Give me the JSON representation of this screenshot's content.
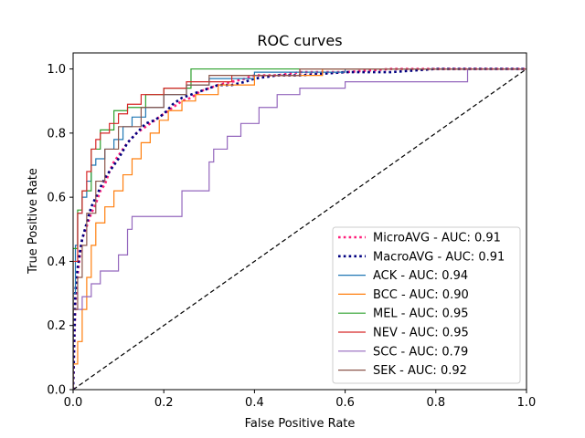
{
  "chart_data": {
    "type": "line",
    "title": "ROC curves",
    "xlabel": "False Positive Rate",
    "ylabel": "True Positive Rate",
    "xlim": [
      0,
      1
    ],
    "ylim": [
      0,
      1.05
    ],
    "xticks": [
      0.0,
      0.2,
      0.4,
      0.6,
      0.8,
      1.0
    ],
    "yticks": [
      0.0,
      0.2,
      0.4,
      0.6,
      0.8,
      1.0
    ],
    "tick_labels_x": [
      "0.0",
      "0.2",
      "0.4",
      "0.6",
      "0.8",
      "1.0"
    ],
    "tick_labels_y": [
      "0.0",
      "0.2",
      "0.4",
      "0.6",
      "0.8",
      "1.0"
    ],
    "legend_position": "lower-right",
    "chance_line": {
      "x": [
        0,
        1
      ],
      "y": [
        0,
        1
      ],
      "color": "#000000",
      "style": "dashed"
    },
    "series": [
      {
        "name": "MicroAVG - AUC: 0.91",
        "color": "#ff1f7a",
        "style": "dotted",
        "x": [
          0.0,
          0.005,
          0.01,
          0.015,
          0.02,
          0.03,
          0.04,
          0.05,
          0.06,
          0.07,
          0.08,
          0.09,
          0.1,
          0.12,
          0.14,
          0.16,
          0.18,
          0.2,
          0.22,
          0.24,
          0.26,
          0.28,
          0.3,
          0.32,
          0.35,
          0.38,
          0.4,
          0.45,
          0.5,
          0.6,
          0.7,
          0.8,
          0.9,
          1.0
        ],
        "y": [
          0.0,
          0.27,
          0.36,
          0.42,
          0.47,
          0.51,
          0.55,
          0.58,
          0.62,
          0.64,
          0.68,
          0.71,
          0.73,
          0.77,
          0.8,
          0.82,
          0.84,
          0.86,
          0.88,
          0.9,
          0.91,
          0.93,
          0.94,
          0.95,
          0.96,
          0.97,
          0.98,
          0.98,
          0.99,
          0.99,
          1.0,
          1.0,
          1.0,
          1.0
        ]
      },
      {
        "name": "MacroAVG - AUC: 0.91",
        "color": "#000080",
        "style": "dotted",
        "x": [
          0.0,
          0.005,
          0.01,
          0.015,
          0.02,
          0.03,
          0.04,
          0.05,
          0.06,
          0.07,
          0.08,
          0.09,
          0.1,
          0.12,
          0.14,
          0.16,
          0.18,
          0.2,
          0.22,
          0.24,
          0.26,
          0.28,
          0.3,
          0.32,
          0.35,
          0.38,
          0.4,
          0.45,
          0.5,
          0.6,
          0.7,
          0.8,
          0.9,
          1.0
        ],
        "y": [
          0.0,
          0.31,
          0.38,
          0.43,
          0.47,
          0.52,
          0.57,
          0.6,
          0.63,
          0.66,
          0.68,
          0.7,
          0.72,
          0.77,
          0.8,
          0.83,
          0.84,
          0.86,
          0.89,
          0.91,
          0.92,
          0.93,
          0.94,
          0.95,
          0.95,
          0.96,
          0.97,
          0.98,
          0.98,
          0.99,
          0.99,
          1.0,
          1.0,
          1.0
        ]
      },
      {
        "name": "ACK - AUC: 0.94",
        "color": "#1f77b4",
        "style": "solid",
        "x": [
          0.0,
          0.0,
          0.005,
          0.005,
          0.01,
          0.01,
          0.02,
          0.02,
          0.03,
          0.03,
          0.04,
          0.04,
          0.05,
          0.05,
          0.07,
          0.07,
          0.09,
          0.09,
          0.11,
          0.11,
          0.13,
          0.13,
          0.16,
          0.16,
          0.2,
          0.2,
          0.25,
          0.25,
          0.3,
          0.3,
          0.4,
          0.4,
          0.6,
          0.6,
          1.0
        ],
        "y": [
          0.0,
          0.3,
          0.3,
          0.45,
          0.45,
          0.55,
          0.55,
          0.6,
          0.6,
          0.65,
          0.65,
          0.7,
          0.7,
          0.72,
          0.72,
          0.75,
          0.75,
          0.78,
          0.78,
          0.82,
          0.82,
          0.85,
          0.85,
          0.88,
          0.88,
          0.92,
          0.92,
          0.95,
          0.95,
          0.97,
          0.97,
          0.99,
          0.99,
          1.0,
          1.0
        ]
      },
      {
        "name": "BCC - AUC: 0.90",
        "color": "#ff7f0e",
        "style": "solid",
        "x": [
          0.0,
          0.0,
          0.01,
          0.01,
          0.02,
          0.02,
          0.03,
          0.03,
          0.04,
          0.04,
          0.05,
          0.05,
          0.07,
          0.07,
          0.09,
          0.09,
          0.11,
          0.11,
          0.13,
          0.13,
          0.15,
          0.15,
          0.17,
          0.17,
          0.19,
          0.19,
          0.21,
          0.21,
          0.24,
          0.24,
          0.27,
          0.27,
          0.32,
          0.32,
          0.4,
          0.4,
          0.55,
          0.55,
          1.0
        ],
        "y": [
          0.0,
          0.08,
          0.08,
          0.15,
          0.15,
          0.25,
          0.25,
          0.35,
          0.35,
          0.45,
          0.45,
          0.52,
          0.52,
          0.57,
          0.57,
          0.62,
          0.62,
          0.67,
          0.67,
          0.72,
          0.72,
          0.77,
          0.77,
          0.8,
          0.8,
          0.84,
          0.84,
          0.87,
          0.87,
          0.9,
          0.9,
          0.92,
          0.92,
          0.95,
          0.95,
          0.98,
          0.98,
          1.0,
          1.0
        ]
      },
      {
        "name": "MEL - AUC: 0.95",
        "color": "#2ca02c",
        "style": "solid",
        "x": [
          0.0,
          0.0,
          0.01,
          0.01,
          0.02,
          0.02,
          0.04,
          0.04,
          0.06,
          0.06,
          0.09,
          0.09,
          0.12,
          0.12,
          0.16,
          0.16,
          0.2,
          0.2,
          0.26,
          0.26,
          1.0
        ],
        "y": [
          0.0,
          0.44,
          0.44,
          0.56,
          0.56,
          0.62,
          0.62,
          0.75,
          0.75,
          0.81,
          0.81,
          0.87,
          0.87,
          0.88,
          0.88,
          0.92,
          0.92,
          0.94,
          0.94,
          1.0,
          1.0
        ]
      },
      {
        "name": "NEV - AUC: 0.95",
        "color": "#d62728",
        "style": "solid",
        "x": [
          0.0,
          0.0,
          0.01,
          0.01,
          0.02,
          0.02,
          0.03,
          0.03,
          0.04,
          0.04,
          0.05,
          0.05,
          0.06,
          0.06,
          0.08,
          0.08,
          0.1,
          0.1,
          0.12,
          0.12,
          0.15,
          0.15,
          0.2,
          0.2,
          0.25,
          0.25,
          0.35,
          0.35,
          0.5,
          0.5,
          1.0
        ],
        "y": [
          0.0,
          0.4,
          0.4,
          0.55,
          0.55,
          0.62,
          0.62,
          0.68,
          0.68,
          0.75,
          0.75,
          0.78,
          0.78,
          0.8,
          0.8,
          0.83,
          0.83,
          0.86,
          0.86,
          0.89,
          0.89,
          0.92,
          0.92,
          0.94,
          0.94,
          0.96,
          0.96,
          0.98,
          0.98,
          1.0,
          1.0
        ]
      },
      {
        "name": "SCC - AUC: 0.79",
        "color": "#9467bd",
        "style": "solid",
        "x": [
          0.0,
          0.0,
          0.02,
          0.02,
          0.04,
          0.04,
          0.06,
          0.06,
          0.1,
          0.1,
          0.12,
          0.12,
          0.13,
          0.13,
          0.24,
          0.24,
          0.3,
          0.3,
          0.31,
          0.31,
          0.34,
          0.34,
          0.37,
          0.37,
          0.41,
          0.41,
          0.45,
          0.45,
          0.5,
          0.5,
          0.6,
          0.6,
          0.7,
          0.7,
          0.87,
          0.87,
          1.0
        ],
        "y": [
          0.0,
          0.25,
          0.25,
          0.29,
          0.29,
          0.33,
          0.33,
          0.37,
          0.37,
          0.42,
          0.42,
          0.5,
          0.5,
          0.54,
          0.54,
          0.62,
          0.62,
          0.71,
          0.71,
          0.75,
          0.75,
          0.79,
          0.79,
          0.83,
          0.83,
          0.88,
          0.88,
          0.92,
          0.92,
          0.94,
          0.94,
          0.96,
          0.96,
          0.96,
          0.96,
          1.0,
          1.0
        ]
      },
      {
        "name": "SEK - AUC: 0.92",
        "color": "#8c564b",
        "style": "solid",
        "x": [
          0.0,
          0.0,
          0.01,
          0.01,
          0.02,
          0.02,
          0.03,
          0.03,
          0.05,
          0.05,
          0.07,
          0.07,
          0.1,
          0.1,
          0.15,
          0.15,
          0.2,
          0.2,
          0.25,
          0.25,
          0.3,
          0.3,
          0.5,
          0.5,
          1.0
        ],
        "y": [
          0.0,
          0.25,
          0.25,
          0.35,
          0.35,
          0.45,
          0.45,
          0.55,
          0.55,
          0.65,
          0.65,
          0.75,
          0.75,
          0.82,
          0.82,
          0.88,
          0.88,
          0.92,
          0.92,
          0.95,
          0.95,
          0.98,
          0.98,
          1.0,
          1.0
        ]
      }
    ]
  }
}
